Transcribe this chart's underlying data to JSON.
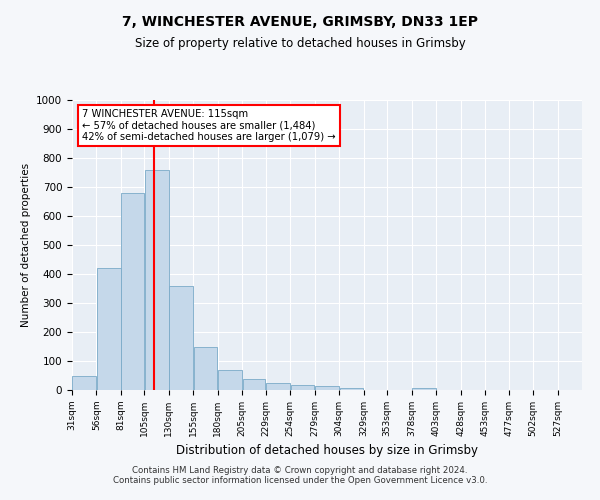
{
  "title": "7, WINCHESTER AVENUE, GRIMSBY, DN33 1EP",
  "subtitle": "Size of property relative to detached houses in Grimsby",
  "xlabel": "Distribution of detached houses by size in Grimsby",
  "ylabel": "Number of detached properties",
  "bar_color": "#c5d8ea",
  "bar_edge_color": "#7aaac8",
  "background_color": "#e8eef5",
  "fig_background": "#f5f7fa",
  "grid_color": "#ffffff",
  "vline_x": 115,
  "vline_color": "red",
  "annotation_text": "7 WINCHESTER AVENUE: 115sqm\n← 57% of detached houses are smaller (1,484)\n42% of semi-detached houses are larger (1,079) →",
  "annotation_box_color": "white",
  "annotation_box_edge": "red",
  "categories": [
    "31sqm",
    "56sqm",
    "81sqm",
    "105sqm",
    "130sqm",
    "155sqm",
    "180sqm",
    "205sqm",
    "229sqm",
    "254sqm",
    "279sqm",
    "304sqm",
    "329sqm",
    "353sqm",
    "378sqm",
    "403sqm",
    "428sqm",
    "453sqm",
    "477sqm",
    "502sqm",
    "527sqm"
  ],
  "bin_edges": [
    31,
    56,
    81,
    105,
    130,
    155,
    180,
    205,
    229,
    254,
    279,
    304,
    329,
    353,
    378,
    403,
    428,
    453,
    477,
    502,
    527,
    552
  ],
  "values": [
    50,
    420,
    680,
    760,
    360,
    150,
    70,
    38,
    25,
    18,
    13,
    8,
    0,
    0,
    8,
    0,
    0,
    0,
    0,
    0,
    0
  ],
  "ylim": [
    0,
    1000
  ],
  "yticks": [
    0,
    100,
    200,
    300,
    400,
    500,
    600,
    700,
    800,
    900,
    1000
  ],
  "footer": "Contains HM Land Registry data © Crown copyright and database right 2024.\nContains public sector information licensed under the Open Government Licence v3.0."
}
